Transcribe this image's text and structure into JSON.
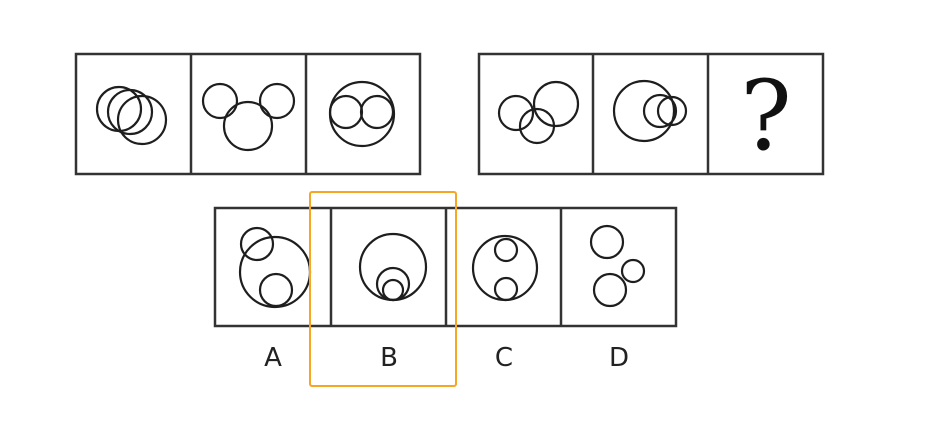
{
  "question_mark": "?",
  "options": [
    {
      "label": "A"
    },
    {
      "label": "B"
    },
    {
      "label": "C"
    },
    {
      "label": "D"
    }
  ],
  "selected_option": "B",
  "colors": {
    "frame": "#333333",
    "stroke": "#1e1e1e",
    "highlight": "#f5a623",
    "background": "#ffffff"
  }
}
